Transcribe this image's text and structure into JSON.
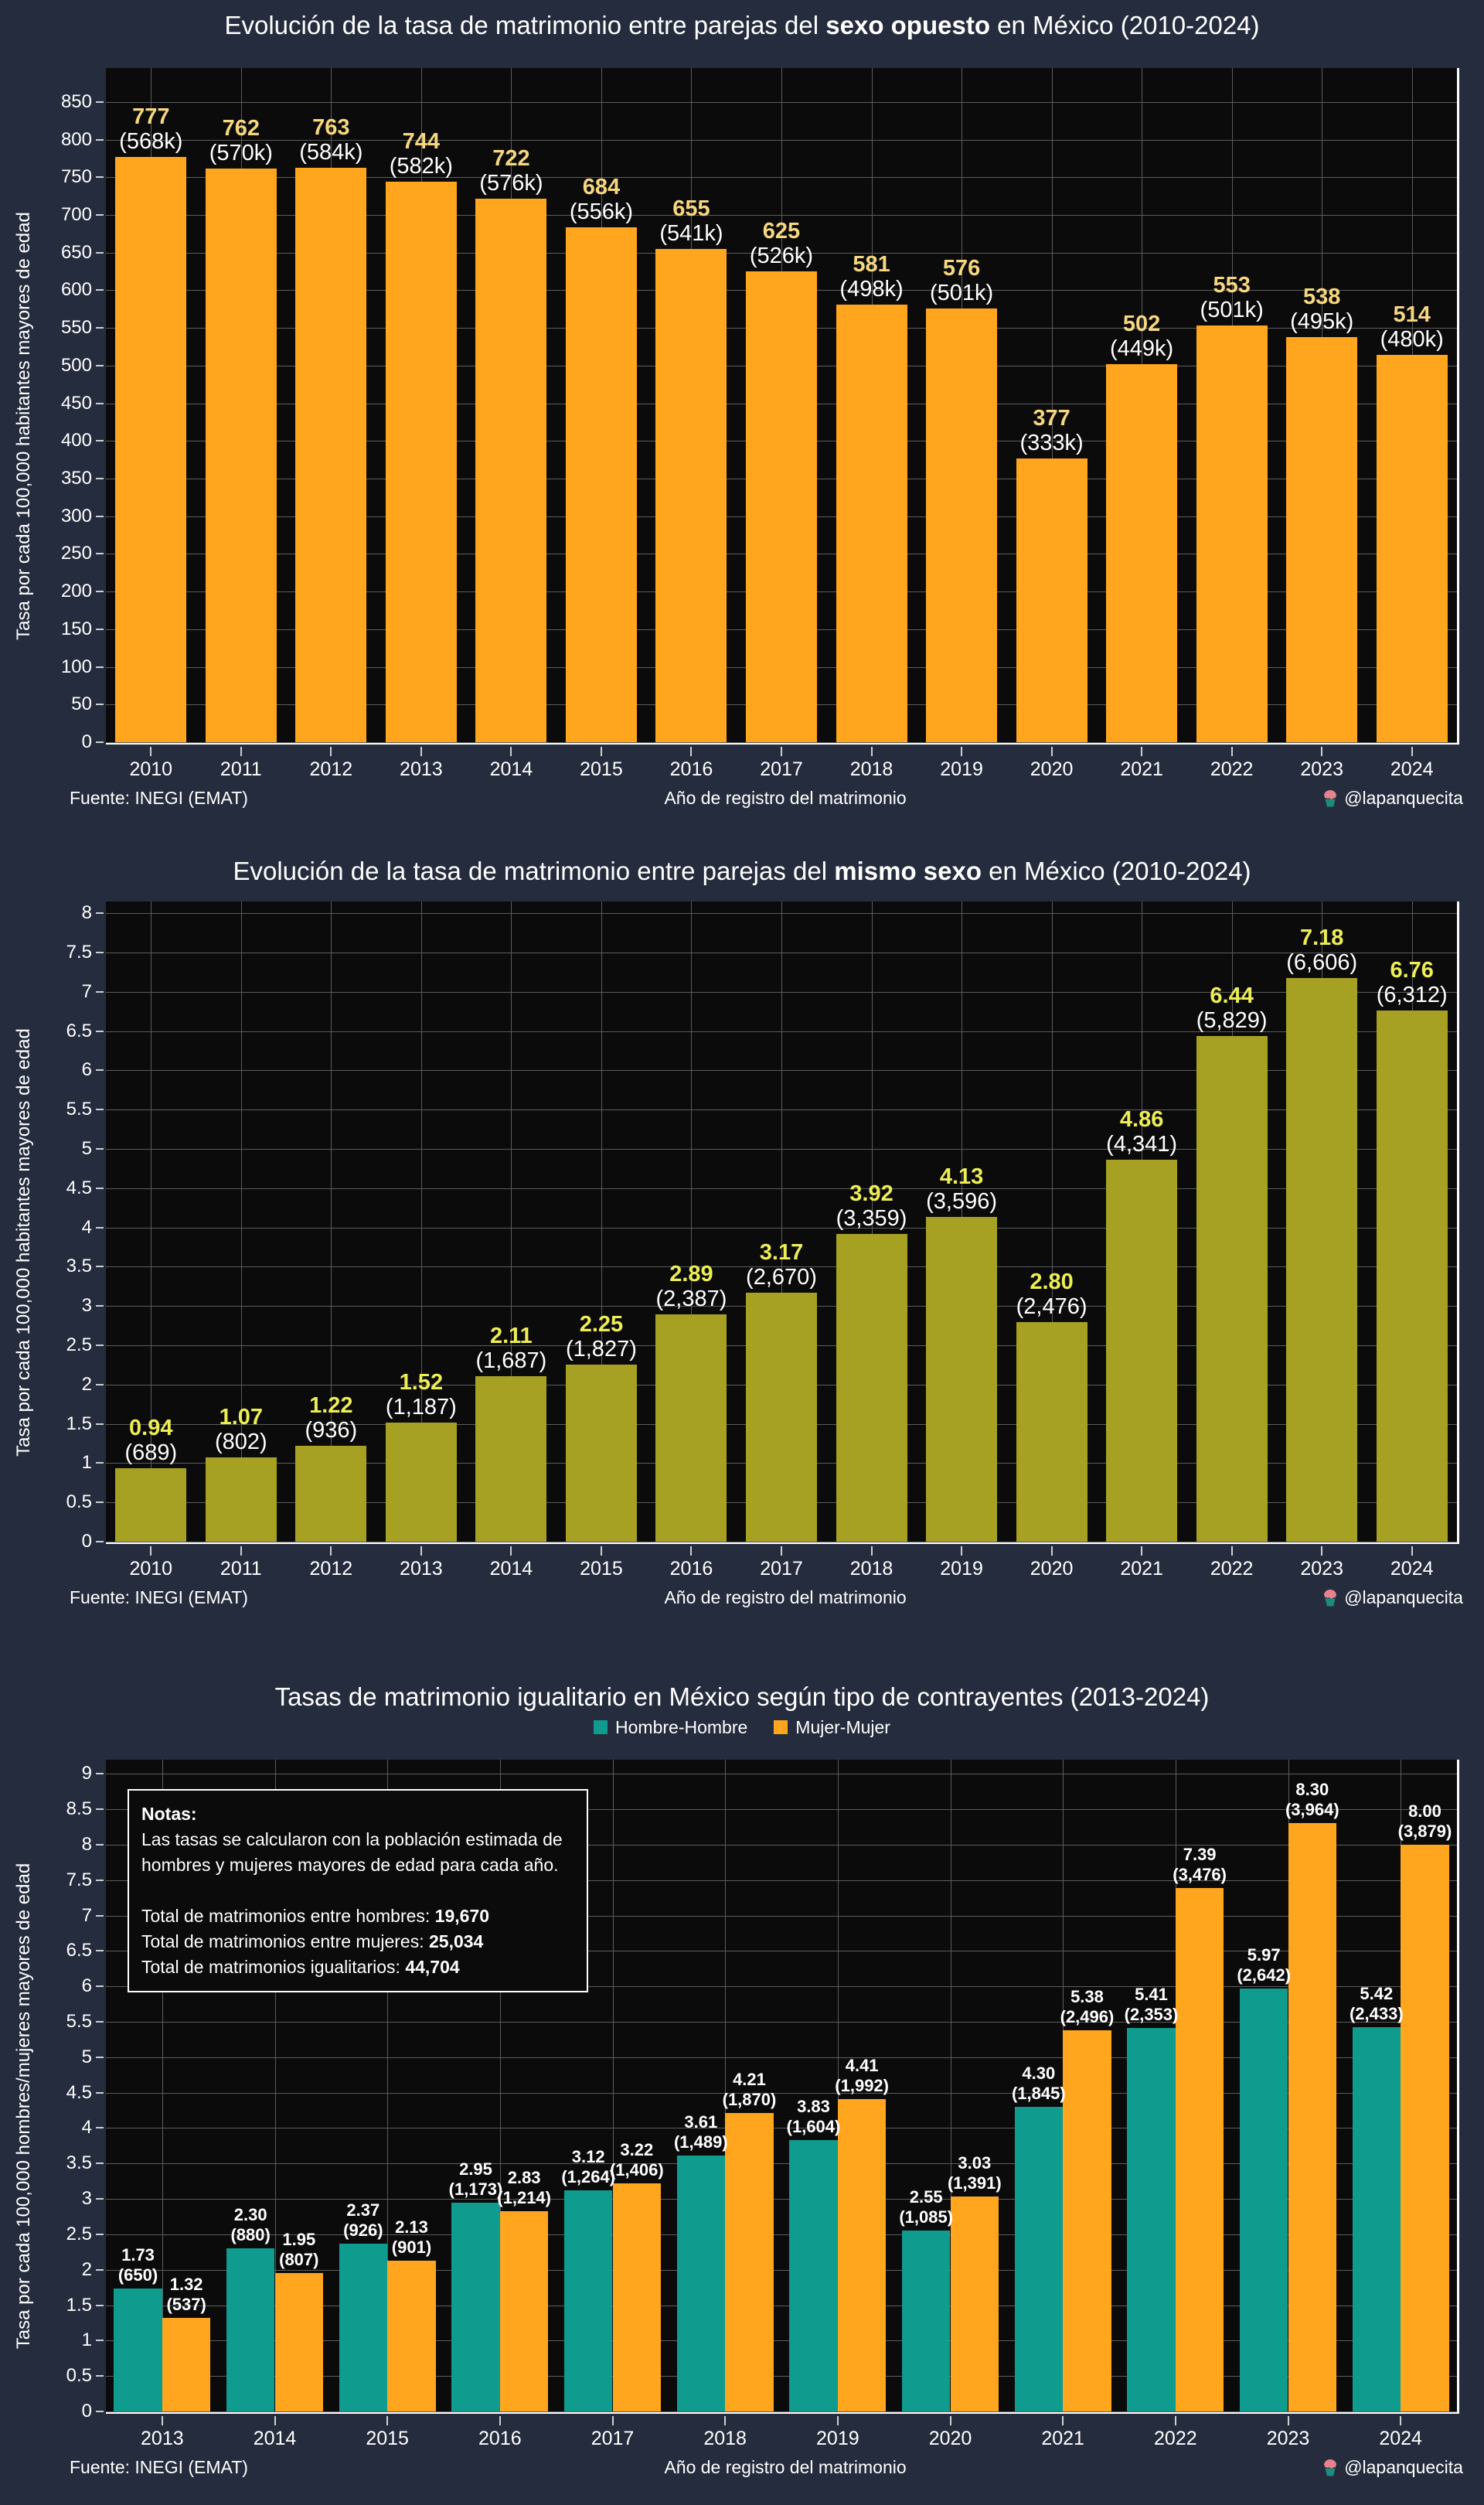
{
  "footer": {
    "source": "Fuente: INEGI (EMAT)",
    "credit": "@lapanquecita",
    "credit_icon": "cupcake-icon"
  },
  "colors": {
    "background": "#252c3d",
    "plot_background": "#0b0b0b",
    "grid": "#5c5c5c",
    "opposite_sex_bar": "#ffa51e",
    "same_sex_bar": "#a6a123",
    "hombre_hombre_bar": "#0f9b8e",
    "mujer_mujer_bar": "#ffa51e",
    "rate_label_chart1": "#f6d77f",
    "rate_label_chart2": "#edee55",
    "rate_label_chart3": "#ffffff"
  },
  "chart_data": [
    {
      "type": "bar",
      "title": {
        "prefix": "Evolución de la tasa de matrimonio entre parejas del ",
        "bold": "sexo opuesto",
        "suffix": " en México (2010-2024)"
      },
      "ylabel": "Tasa por cada 100,000 habitantes mayores de edad",
      "xlabel": "Año de registro del matrimonio",
      "categories": [
        "2010",
        "2011",
        "2012",
        "2013",
        "2014",
        "2015",
        "2016",
        "2017",
        "2018",
        "2019",
        "2020",
        "2021",
        "2022",
        "2023",
        "2024"
      ],
      "values": [
        777,
        762,
        763,
        744,
        722,
        684,
        655,
        625,
        581,
        576,
        377,
        502,
        553,
        538,
        514
      ],
      "rate_labels": [
        "777",
        "762",
        "763",
        "744",
        "722",
        "684",
        "655",
        "625",
        "581",
        "576",
        "377",
        "502",
        "553",
        "538",
        "514"
      ],
      "count_labels": [
        "(568k)",
        "(570k)",
        "(584k)",
        "(582k)",
        "(576k)",
        "(556k)",
        "(541k)",
        "(526k)",
        "(498k)",
        "(501k)",
        "(333k)",
        "(449k)",
        "(501k)",
        "(495k)",
        "(480k)"
      ],
      "bar_color": "#ffa51e",
      "rate_label_color": "#f6d77f",
      "ylim": [
        0,
        895
      ],
      "yticks": [
        "0",
        "50",
        "100",
        "150",
        "200",
        "250",
        "300",
        "350",
        "400",
        "450",
        "500",
        "550",
        "600",
        "650",
        "700",
        "750",
        "800",
        "850"
      ],
      "grid": true,
      "legend_position": "none"
    },
    {
      "type": "bar",
      "title": {
        "prefix": "Evolución de la tasa de matrimonio entre parejas del ",
        "bold": "mismo sexo",
        "suffix": " en México (2010-2024)"
      },
      "ylabel": "Tasa por cada 100,000 habitantes mayores de edad",
      "xlabel": "Año de registro del matrimonio",
      "categories": [
        "2010",
        "2011",
        "2012",
        "2013",
        "2014",
        "2015",
        "2016",
        "2017",
        "2018",
        "2019",
        "2020",
        "2021",
        "2022",
        "2023",
        "2024"
      ],
      "values": [
        0.94,
        1.07,
        1.22,
        1.52,
        2.11,
        2.25,
        2.89,
        3.17,
        3.92,
        4.13,
        2.8,
        4.86,
        6.44,
        7.18,
        6.76
      ],
      "rate_labels": [
        "0.94",
        "1.07",
        "1.22",
        "1.52",
        "2.11",
        "2.25",
        "2.89",
        "3.17",
        "3.92",
        "4.13",
        "2.80",
        "4.86",
        "6.44",
        "7.18",
        "6.76"
      ],
      "count_labels": [
        "(689)",
        "(802)",
        "(936)",
        "(1,187)",
        "(1,687)",
        "(1,827)",
        "(2,387)",
        "(2,670)",
        "(3,359)",
        "(3,596)",
        "(2,476)",
        "(4,341)",
        "(5,829)",
        "(6,606)",
        "(6,312)"
      ],
      "bar_color": "#a6a123",
      "rate_label_color": "#edee55",
      "ylim": [
        0,
        8.15
      ],
      "yticks": [
        "0",
        "0.5",
        "1",
        "1.5",
        "2",
        "2.5",
        "3",
        "3.5",
        "4",
        "4.5",
        "5",
        "5.5",
        "6",
        "6.5",
        "7",
        "7.5",
        "8"
      ],
      "grid": true,
      "legend_position": "none"
    },
    {
      "type": "grouped_bar",
      "title": {
        "prefix": "Tasas de matrimonio igualitario en México según tipo de contrayentes (2013-2024)",
        "bold": "",
        "suffix": ""
      },
      "ylabel": "Tasa por cada 100,000 hombres/mujeres mayores de edad",
      "xlabel": "Año de registro del matrimonio",
      "categories": [
        "2013",
        "2014",
        "2015",
        "2016",
        "2017",
        "2018",
        "2019",
        "2020",
        "2021",
        "2022",
        "2023",
        "2024"
      ],
      "series": [
        {
          "name": "Hombre-Hombre",
          "color": "#0f9b8e",
          "label_color": "#ffffff",
          "values": [
            1.73,
            2.3,
            2.37,
            2.95,
            3.12,
            3.61,
            3.83,
            2.55,
            4.3,
            5.41,
            5.97,
            5.42
          ],
          "rate_labels": [
            "1.73",
            "2.30",
            "2.37",
            "2.95",
            "3.12",
            "3.61",
            "3.83",
            "2.55",
            "4.30",
            "5.41",
            "5.97",
            "5.42"
          ],
          "count_labels": [
            "(650)",
            "(880)",
            "(926)",
            "(1,173)",
            "(1,264)",
            "(1,489)",
            "(1,604)",
            "(1,085)",
            "(1,845)",
            "(2,353)",
            "(2,642)",
            "(2,433)"
          ]
        },
        {
          "name": "Mujer-Mujer",
          "color": "#ffa51e",
          "label_color": "#ffffff",
          "values": [
            1.32,
            1.95,
            2.13,
            2.83,
            3.22,
            4.21,
            4.41,
            3.03,
            5.38,
            7.39,
            8.3,
            8.0
          ],
          "rate_labels": [
            "1.32",
            "1.95",
            "2.13",
            "2.83",
            "3.22",
            "4.21",
            "4.41",
            "3.03",
            "5.38",
            "7.39",
            "8.30",
            "8.00"
          ],
          "count_labels": [
            "(537)",
            "(807)",
            "(901)",
            "(1,214)",
            "(1,406)",
            "(1,870)",
            "(1,992)",
            "(1,391)",
            "(2,496)",
            "(3,476)",
            "(3,964)",
            "(3,879)"
          ]
        }
      ],
      "ylim": [
        0,
        9.2
      ],
      "yticks": [
        "0",
        "0.5",
        "1",
        "1.5",
        "2",
        "2.5",
        "3",
        "3.5",
        "4",
        "4.5",
        "5",
        "5.5",
        "6",
        "6.5",
        "7",
        "7.5",
        "8",
        "8.5",
        "9"
      ],
      "grid": true,
      "legend_position": "top-center",
      "legend": {
        "items": [
          {
            "label": "Hombre-Hombre",
            "color": "#0f9b8e"
          },
          {
            "label": "Mujer-Mujer",
            "color": "#ffa51e"
          }
        ]
      },
      "notes": {
        "title": "Notas:",
        "body": "Las tasas se calcularon con la población estimada de hombres y mujeres mayores de edad para cada año.",
        "totals": [
          {
            "label": "Total de matrimonios entre hombres: ",
            "value": "19,670"
          },
          {
            "label": "Total de matrimonios entre mujeres: ",
            "value": "25,034"
          },
          {
            "label": "Total de matrimonios igualitarios: ",
            "value": "44,704"
          }
        ]
      }
    }
  ]
}
